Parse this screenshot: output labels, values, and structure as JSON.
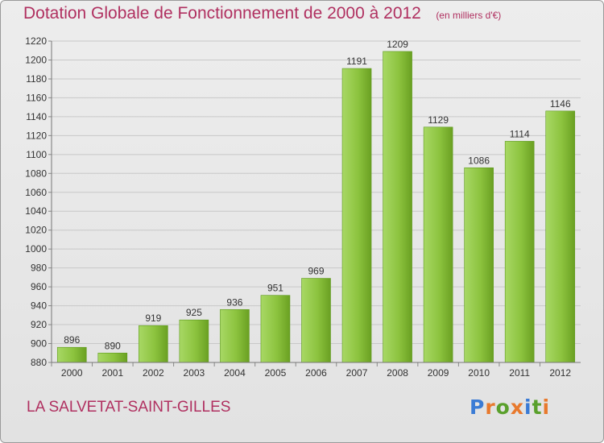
{
  "header": {
    "title": "Dotation Globale de Fonctionnement de 2000 à 2012",
    "subtitle": "(en milliers d'€)"
  },
  "footer": {
    "place": "LA SALVETAT-SAINT-GILLES",
    "logo_text": "Proxiti"
  },
  "colors": {
    "title": "#b03060",
    "bar_light": "#a8d865",
    "bar_dark": "#6aa022",
    "logo_letters": [
      "#3a7bd5",
      "#e8792d",
      "#5aa02c",
      "#e8792d",
      "#3a7bd5",
      "#5aa02c",
      "#e8792d"
    ]
  },
  "chart_data": {
    "type": "bar",
    "categories": [
      "2000",
      "2001",
      "2002",
      "2003",
      "2004",
      "2005",
      "2006",
      "2007",
      "2008",
      "2009",
      "2010",
      "2011",
      "2012"
    ],
    "values": [
      896,
      890,
      919,
      925,
      936,
      951,
      969,
      1191,
      1209,
      1129,
      1086,
      1114,
      1146
    ],
    "ylim": [
      880,
      1220
    ],
    "yticks": [
      880,
      900,
      920,
      940,
      960,
      980,
      1000,
      1020,
      1040,
      1060,
      1080,
      1100,
      1120,
      1140,
      1160,
      1180,
      1200,
      1220
    ],
    "grid": true,
    "xlabel": "",
    "ylabel": ""
  }
}
